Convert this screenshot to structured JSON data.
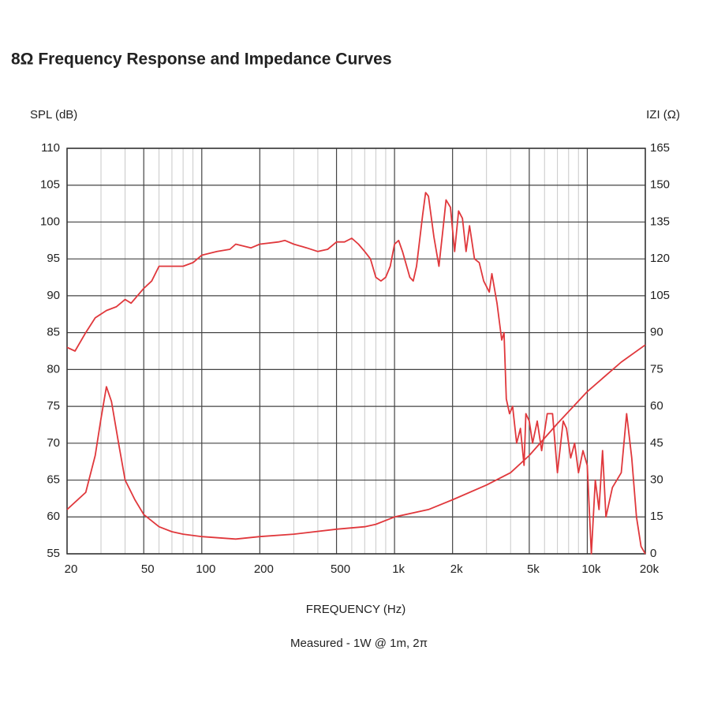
{
  "chart_data": {
    "type": "line",
    "title": "8Ω Frequency Response and Impedance Curves",
    "ylabel": "SPL (dB)",
    "y2label": "IZI (Ω)",
    "xlabel": "FREQUENCY (Hz)",
    "note": "Measured - 1W @ 1m, 2π",
    "xscale": "log",
    "xlim": [
      20,
      20000
    ],
    "xticks": [
      20,
      50,
      100,
      200,
      500,
      {
        "value": 1000,
        "label": "1k"
      },
      {
        "value": 2000,
        "label": "2k"
      },
      {
        "value": 5000,
        "label": "5k"
      },
      {
        "value": 10000,
        "label": "10k"
      },
      {
        "value": 20000,
        "label": "20k"
      }
    ],
    "xminorticks": [
      30,
      40,
      60,
      70,
      80,
      90,
      300,
      400,
      600,
      700,
      800,
      900,
      3000,
      4000,
      6000,
      7000,
      8000,
      9000
    ],
    "ylim": [
      55,
      110
    ],
    "yticks": [
      55,
      60,
      65,
      70,
      75,
      80,
      85,
      90,
      95,
      100,
      105,
      110
    ],
    "y2lim": [
      0,
      165
    ],
    "y2ticks": [
      0,
      15,
      30,
      45,
      60,
      75,
      90,
      105,
      120,
      135,
      150,
      165
    ],
    "grid": true,
    "series": [
      {
        "color": "#e0383c",
        "x": [
          20,
          22,
          25,
          28,
          32,
          36,
          40,
          43,
          50,
          55,
          60,
          70,
          80,
          90,
          100,
          120,
          140,
          150,
          180,
          200,
          250,
          270,
          300,
          350,
          400,
          450,
          500,
          550,
          600,
          650,
          700,
          750,
          800,
          850,
          900,
          950,
          1000,
          1050,
          1100,
          1200,
          1250,
          1300,
          1400,
          1450,
          1500,
          1600,
          1700,
          1800,
          1850,
          1950,
          2050,
          2150,
          2250,
          2350,
          2450,
          2600,
          2750,
          2900,
          3100,
          3200,
          3400,
          3600,
          3700,
          3800,
          3950,
          4100,
          4300,
          4500,
          4700,
          4800,
          5000,
          5200,
          5500,
          5800,
          6200,
          6600,
          7000,
          7500,
          7800,
          8200,
          8600,
          9000,
          9500,
          10000,
          10500,
          11000,
          11500,
          12000,
          12500,
          13500,
          15000,
          16000,
          17000,
          18000,
          19000,
          20000
        ],
        "values": [
          83,
          82.5,
          85,
          87,
          88,
          88.5,
          89.5,
          89,
          91,
          92,
          94,
          94,
          94,
          94.5,
          95.5,
          96,
          96.3,
          97,
          96.5,
          97,
          97.3,
          97.5,
          97,
          96.5,
          96,
          96.3,
          97.3,
          97.3,
          97.8,
          97,
          96,
          95,
          92.5,
          92,
          92.5,
          94,
          97,
          97.5,
          96,
          92.5,
          92,
          94,
          101,
          104,
          103.5,
          98,
          94,
          100,
          103,
          102,
          96,
          101.5,
          100.5,
          96,
          99.5,
          95,
          94.5,
          92,
          90.5,
          93,
          89,
          84,
          85,
          76,
          74,
          75,
          70,
          72,
          67,
          74,
          73,
          70,
          73,
          69,
          74,
          74,
          66,
          73,
          72,
          68,
          70,
          66,
          69,
          67,
          55,
          65,
          61,
          69,
          60,
          64,
          66,
          74,
          68,
          60,
          56,
          55
        ]
      },
      {
        "color": "#e0383c",
        "axis": "y2",
        "x": [
          20,
          25,
          28,
          30,
          32,
          34,
          37,
          40,
          45,
          50,
          60,
          70,
          80,
          100,
          150,
          200,
          300,
          500,
          700,
          800,
          1000,
          1500,
          2000,
          3000,
          4000,
          5000,
          7000,
          10000,
          15000,
          20000
        ],
        "values": [
          18,
          25,
          40,
          55,
          68,
          62,
          45,
          30,
          22,
          16,
          11,
          9,
          8,
          7,
          6,
          7,
          8,
          10,
          11,
          12,
          15,
          18,
          22,
          28,
          33,
          40,
          53,
          66,
          78,
          85
        ]
      }
    ]
  }
}
